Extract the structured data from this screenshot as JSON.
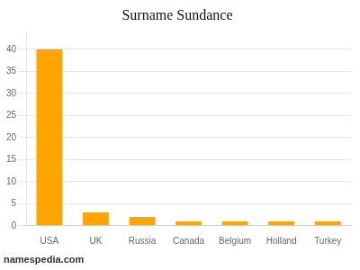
{
  "chart_data": {
    "type": "bar",
    "title": "Surname Sundance",
    "categories": [
      "USA",
      "UK",
      "Russia",
      "Canada",
      "Belgium",
      "Holland",
      "Turkey"
    ],
    "values": [
      40,
      3,
      2,
      1,
      1,
      1,
      1
    ],
    "color": "#FFA500",
    "ylim": [
      0,
      44
    ],
    "yticks": [
      0,
      5,
      10,
      15,
      20,
      25,
      30,
      35,
      40
    ],
    "grid": true,
    "annotations": [
      "namespedia.com"
    ]
  }
}
